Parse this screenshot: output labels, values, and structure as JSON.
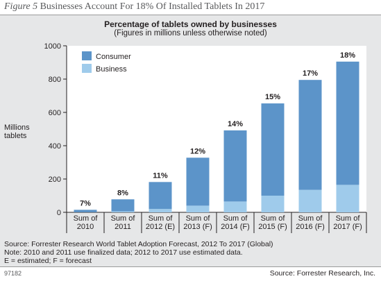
{
  "figure": {
    "number": "Figure 5",
    "title": "Businesses Account For 18% Of Installed Tablets In 2017"
  },
  "chart_data": {
    "type": "bar",
    "stacked": true,
    "title": "Percentage of tablets owned by businesses",
    "subtitle": "(Figures in millions unless otherwise noted)",
    "ylabel": "Millions tablets",
    "ylabel_lines": [
      "Millions",
      "tablets"
    ],
    "xlabel": "",
    "ylim": [
      0,
      1000
    ],
    "yticks": [
      0,
      200,
      400,
      600,
      800,
      1000
    ],
    "grid": false,
    "legend_position": "top-left",
    "categories": [
      [
        "Sum of",
        "2010"
      ],
      [
        "Sum of",
        "2011"
      ],
      [
        "Sum of",
        "2012 (E)"
      ],
      [
        "Sum of",
        "2013 (F)"
      ],
      [
        "Sum of",
        "2014 (F)"
      ],
      [
        "Sum of",
        "2015 (F)"
      ],
      [
        "Sum of",
        "2016 (F)"
      ],
      [
        "Sum of",
        "2017 (F)"
      ]
    ],
    "series": [
      {
        "name": "Business",
        "color": "#9fcbeb",
        "values": [
          1,
          6,
          20,
          40,
          65,
          100,
          135,
          165
        ]
      },
      {
        "name": "Consumer",
        "color": "#5c94c9",
        "values": [
          14,
          72,
          162,
          288,
          427,
          554,
          660,
          740
        ]
      }
    ],
    "legend": [
      "Consumer",
      "Business"
    ],
    "bar_labels": [
      "7%",
      "8%",
      "11%",
      "12%",
      "14%",
      "15%",
      "17%",
      "18%"
    ]
  },
  "notes": [
    "Source: Forrester Research World Tablet Adoption Forecast, 2012 To 2017 (Global)",
    "Note: 2010 and 2011 use finalized data; 2012 to 2017 use estimated data.",
    "E = estimated; F = forecast"
  ],
  "footer": {
    "id": "97182",
    "source": "Source: Forrester Research, Inc."
  }
}
